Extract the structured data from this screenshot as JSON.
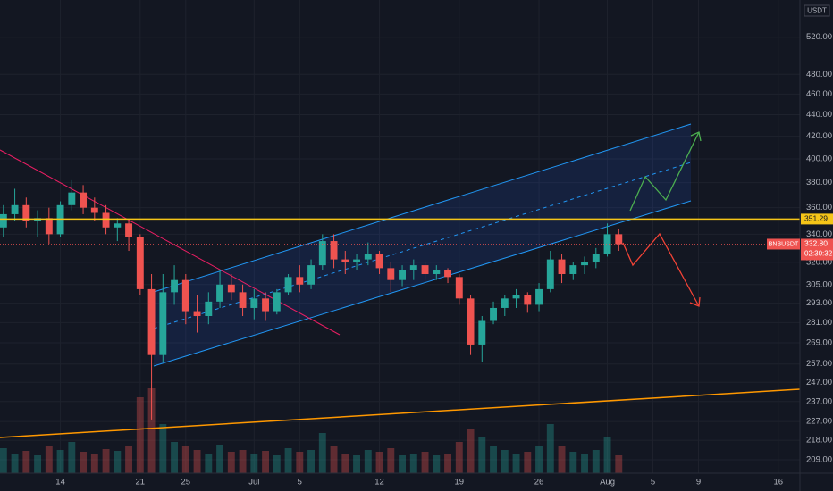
{
  "chart_data": {
    "type": "candlestick",
    "symbol": "BNBUSDT",
    "currency": "USDT",
    "countdown": "02:30:32",
    "log_scale": true,
    "grid": true,
    "up_color": "#26a69a",
    "down_color": "#ef5350",
    "xlim": [
      -0.3,
      69.9
    ],
    "ylim": [
      195.4,
      563.5
    ],
    "xticks": [
      {
        "value": 5,
        "label": "14"
      },
      {
        "value": 12,
        "label": "21"
      },
      {
        "value": 16,
        "label": "25"
      },
      {
        "value": 22,
        "label": "Jul"
      },
      {
        "value": 26,
        "label": "5"
      },
      {
        "value": 33,
        "label": "12"
      },
      {
        "value": 40,
        "label": "19"
      },
      {
        "value": 47,
        "label": "26"
      },
      {
        "value": 53,
        "label": "Aug"
      },
      {
        "value": 57,
        "label": "5"
      },
      {
        "value": 61,
        "label": "9"
      },
      {
        "value": 68,
        "label": "16"
      }
    ],
    "yticks": [
      {
        "value": 520,
        "label": "520.00"
      },
      {
        "value": 480,
        "label": "480.00"
      },
      {
        "value": 460,
        "label": "460.00"
      },
      {
        "value": 440,
        "label": "440.00"
      },
      {
        "value": 420,
        "label": "420.00"
      },
      {
        "value": 400,
        "label": "400.00"
      },
      {
        "value": 380,
        "label": "380.00"
      },
      {
        "value": 360,
        "label": "360.00"
      },
      {
        "value": 340,
        "label": "340.00"
      },
      {
        "value": 320,
        "label": "320.00"
      },
      {
        "value": 305,
        "label": "305.00"
      },
      {
        "value": 293,
        "label": "293.00"
      },
      {
        "value": 281,
        "label": "281.00"
      },
      {
        "value": 269,
        "label": "269.00"
      },
      {
        "value": 257,
        "label": "257.00"
      },
      {
        "value": 247,
        "label": "247.00"
      },
      {
        "value": 237,
        "label": "237.00"
      },
      {
        "value": 227,
        "label": "227.00"
      },
      {
        "value": 218,
        "label": "218.00"
      },
      {
        "value": 209,
        "label": "209.00"
      }
    ],
    "x": [
      0,
      1,
      2,
      3,
      4,
      5,
      6,
      7,
      8,
      9,
      10,
      11,
      12,
      13,
      14,
      15,
      16,
      17,
      18,
      19,
      20,
      21,
      22,
      23,
      24,
      25,
      26,
      27,
      28,
      29,
      30,
      31,
      32,
      33,
      34,
      35,
      36,
      37,
      38,
      39,
      40,
      41,
      42,
      43,
      44,
      45,
      46,
      47,
      48,
      49,
      50,
      51,
      52,
      53,
      54
    ],
    "open": [
      345,
      355,
      362,
      350,
      352,
      340,
      362,
      372,
      360,
      356,
      345,
      348,
      338,
      302,
      262,
      300,
      308,
      288,
      285,
      294,
      305,
      300,
      290,
      296,
      288,
      300,
      310,
      305,
      318,
      335,
      322,
      320,
      322,
      326,
      316,
      308,
      315,
      318,
      312,
      315,
      310,
      296,
      268,
      282,
      290,
      296,
      298,
      292,
      302,
      322,
      312,
      318,
      320,
      326,
      340
    ],
    "high": [
      362,
      375,
      368,
      358,
      360,
      365,
      382,
      378,
      368,
      362,
      352,
      350,
      340,
      312,
      312,
      318,
      312,
      298,
      300,
      315,
      312,
      305,
      302,
      300,
      302,
      312,
      318,
      322,
      340,
      340,
      328,
      326,
      334,
      328,
      320,
      318,
      322,
      320,
      318,
      316,
      312,
      298,
      285,
      294,
      298,
      302,
      300,
      306,
      328,
      326,
      320,
      324,
      330,
      348,
      344
    ],
    "low": [
      338,
      350,
      345,
      338,
      333,
      338,
      358,
      355,
      350,
      340,
      335,
      328,
      298,
      228,
      258,
      292,
      280,
      275,
      280,
      290,
      295,
      285,
      283,
      282,
      286,
      298,
      300,
      302,
      315,
      316,
      312,
      315,
      318,
      312,
      300,
      304,
      308,
      308,
      308,
      306,
      292,
      262,
      258,
      280,
      285,
      290,
      287,
      288,
      300,
      306,
      308,
      312,
      316,
      324,
      328
    ],
    "close": [
      355,
      362,
      350,
      352,
      340,
      362,
      372,
      360,
      356,
      345,
      348,
      338,
      302,
      262,
      300,
      308,
      288,
      285,
      294,
      305,
      300,
      290,
      296,
      288,
      300,
      310,
      305,
      318,
      335,
      322,
      320,
      322,
      326,
      316,
      308,
      315,
      318,
      312,
      315,
      310,
      296,
      268,
      282,
      290,
      296,
      298,
      292,
      302,
      322,
      312,
      318,
      320,
      326,
      340,
      332.8
    ],
    "volume": [
      28,
      22,
      25,
      20,
      30,
      26,
      35,
      24,
      22,
      27,
      25,
      30,
      85,
      95,
      55,
      35,
      30,
      26,
      22,
      32,
      24,
      26,
      22,
      25,
      20,
      28,
      24,
      26,
      45,
      30,
      22,
      20,
      26,
      24,
      28,
      20,
      22,
      24,
      20,
      22,
      35,
      50,
      40,
      30,
      26,
      22,
      24,
      30,
      55,
      30,
      24,
      22,
      26,
      40,
      20
    ],
    "price_lines": [
      {
        "value": 351.29,
        "color": "#f5c518"
      },
      {
        "value": 332.8,
        "label": "332.80",
        "color": "#ef5350"
      }
    ]
  }
}
